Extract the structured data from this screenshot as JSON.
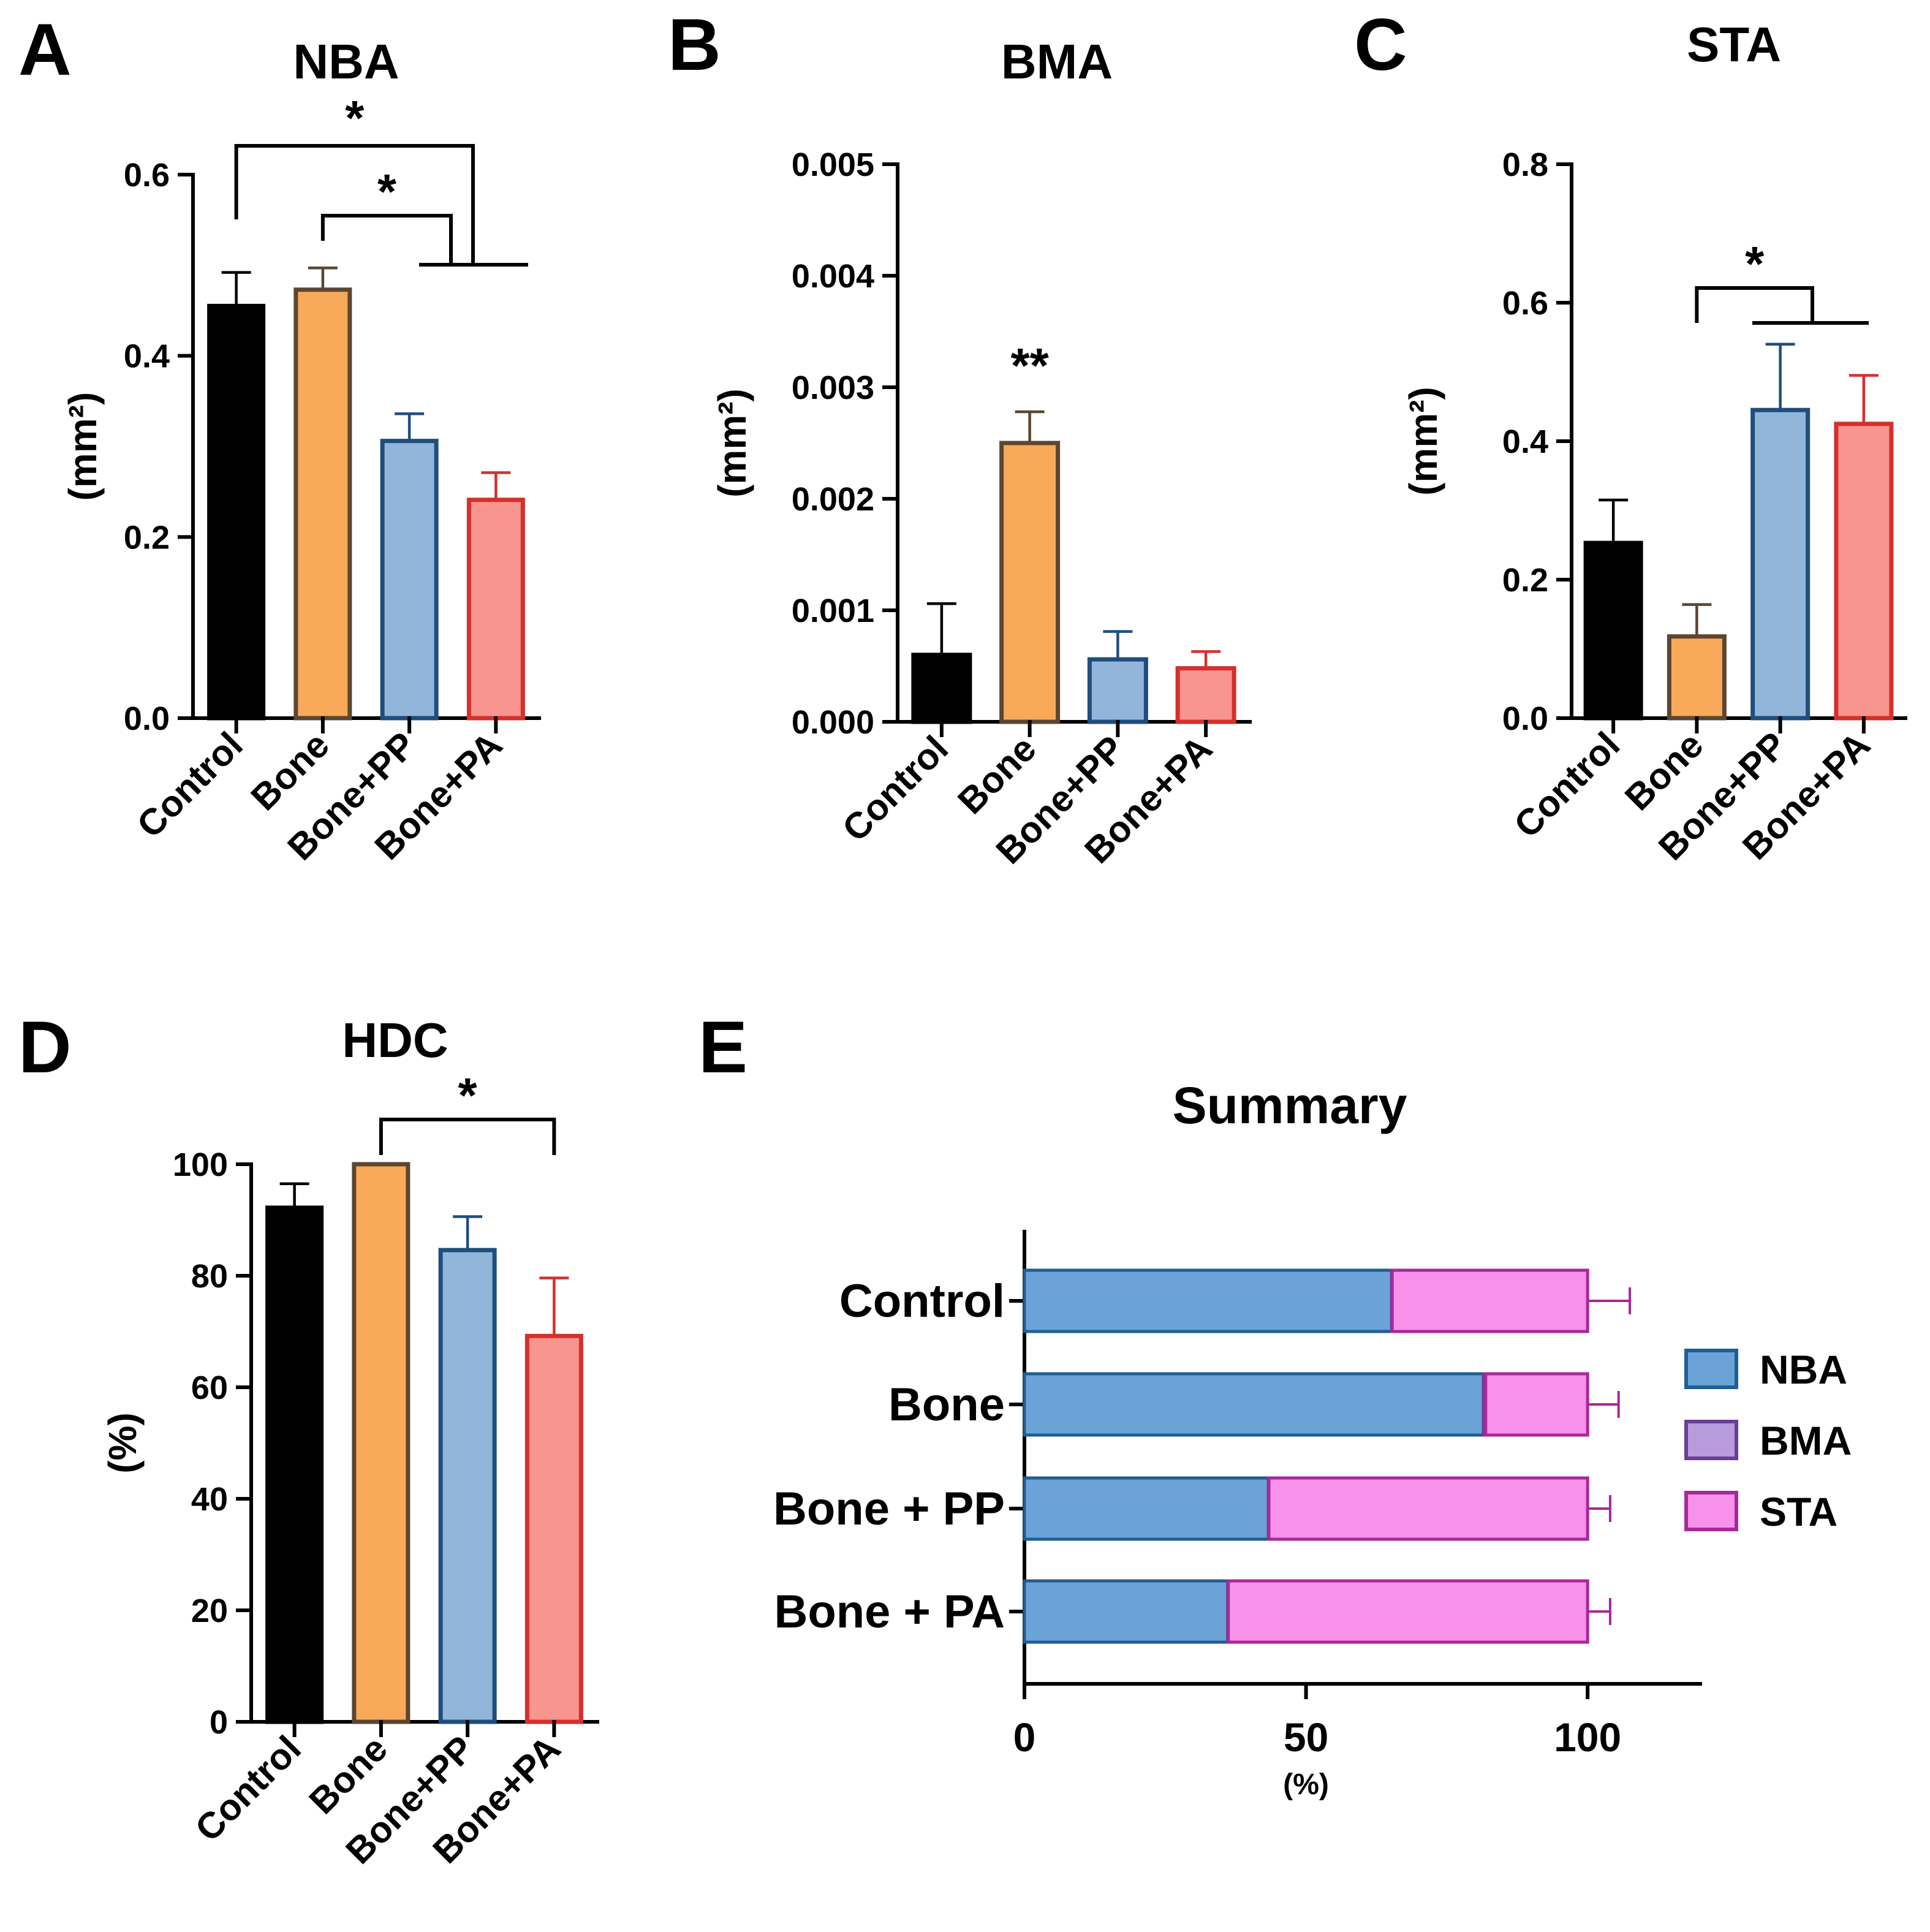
{
  "groups": [
    "Control",
    "Bone",
    "Bone+PP",
    "Bone+PA"
  ],
  "group_styles": [
    {
      "fill": "#000000",
      "stroke": "#000000"
    },
    {
      "fill": "#F9A95A",
      "stroke": "#5C4630"
    },
    {
      "fill": "#92B6DA",
      "stroke": "#1F4E7C"
    },
    {
      "fill": "#F7958E",
      "stroke": "#D5302C"
    }
  ],
  "chart_data": [
    {
      "panel": "A",
      "type": "bar",
      "title": "NBA",
      "ylabel": "(mm²)",
      "categories": [
        "Control",
        "Bone",
        "Bone+PP",
        "Bone+PA"
      ],
      "values": [
        0.455,
        0.473,
        0.306,
        0.241
      ],
      "errors": [
        0.037,
        0.024,
        0.03,
        0.03
      ],
      "ylim": [
        0,
        0.6
      ],
      "yticks": [
        "0.0",
        "0.2",
        "0.4",
        "0.6"
      ],
      "significance": [
        {
          "label": "*",
          "from": "Control",
          "to": "Bone+PP & Bone+PA"
        },
        {
          "label": "*",
          "from": "Bone",
          "to": "Bone+PP & Bone+PA"
        }
      ]
    },
    {
      "panel": "B",
      "type": "bar",
      "title": "BMA",
      "ylabel": "(mm²)",
      "categories": [
        "Control",
        "Bone",
        "Bone+PP",
        "Bone+PA"
      ],
      "values": [
        0.0006,
        0.0025,
        0.00056,
        0.00048
      ],
      "errors": [
        0.00046,
        0.00028,
        0.00025,
        0.00015
      ],
      "ylim": [
        0,
        0.005
      ],
      "yticks": [
        "0.000",
        "0.001",
        "0.002",
        "0.003",
        "0.004",
        "0.005"
      ],
      "significance": [
        {
          "label": "**",
          "on": "Bone"
        }
      ]
    },
    {
      "panel": "C",
      "type": "bar",
      "title": "STA",
      "ylabel": "(mm²)",
      "categories": [
        "Control",
        "Bone",
        "Bone+PP",
        "Bone+PA"
      ],
      "values": [
        0.253,
        0.118,
        0.445,
        0.425
      ],
      "errors": [
        0.062,
        0.046,
        0.095,
        0.07
      ],
      "ylim": [
        0,
        0.8
      ],
      "yticks": [
        "0.0",
        "0.2",
        "0.4",
        "0.6",
        "0.8"
      ],
      "significance": [
        {
          "label": "*",
          "from": "Bone",
          "to": "Bone+PP & Bone+PA"
        }
      ]
    },
    {
      "panel": "D",
      "type": "bar",
      "title": "HDC",
      "ylabel": "(%)",
      "categories": [
        "Control",
        "Bone",
        "Bone+PP",
        "Bone+PA"
      ],
      "values": [
        92.2,
        100,
        84.6,
        69.2
      ],
      "errors": [
        4.3,
        0,
        6.0,
        10.4
      ],
      "ylim": [
        0,
        100
      ],
      "yticks": [
        "0",
        "20",
        "40",
        "60",
        "80",
        "100"
      ],
      "significance": [
        {
          "label": "*",
          "from": "Bone",
          "to": "Bone+PA"
        }
      ]
    },
    {
      "panel": "E",
      "type": "bar",
      "orientation": "horizontal",
      "stacked": true,
      "title": "Summary",
      "xlabel": "(%)",
      "categories": [
        "Control",
        "Bone",
        "Bone + PP",
        "Bone + PA"
      ],
      "xlim": [
        0,
        120
      ],
      "xticks": [
        "0",
        "50",
        "100"
      ],
      "series": [
        {
          "name": "NBA",
          "color": "#6BA3D6",
          "stroke": "#1F5E94",
          "values": [
            65.2,
            81.5,
            43.3,
            36.1
          ],
          "errors": [
            7.0,
            5.0,
            5.5,
            5.0
          ]
        },
        {
          "name": "BMA",
          "color": "#B79BDB",
          "stroke": "#6A3D9A",
          "values": [
            0.1,
            0.4,
            0.1,
            0.1
          ],
          "errors": [
            0,
            0,
            0,
            0
          ]
        },
        {
          "name": "STA",
          "color": "#F791E9",
          "stroke": "#A8289A",
          "values": [
            34.7,
            18.1,
            56.6,
            63.8
          ],
          "errors": [
            7.5,
            5.5,
            4.0,
            4.0
          ]
        }
      ]
    }
  ]
}
